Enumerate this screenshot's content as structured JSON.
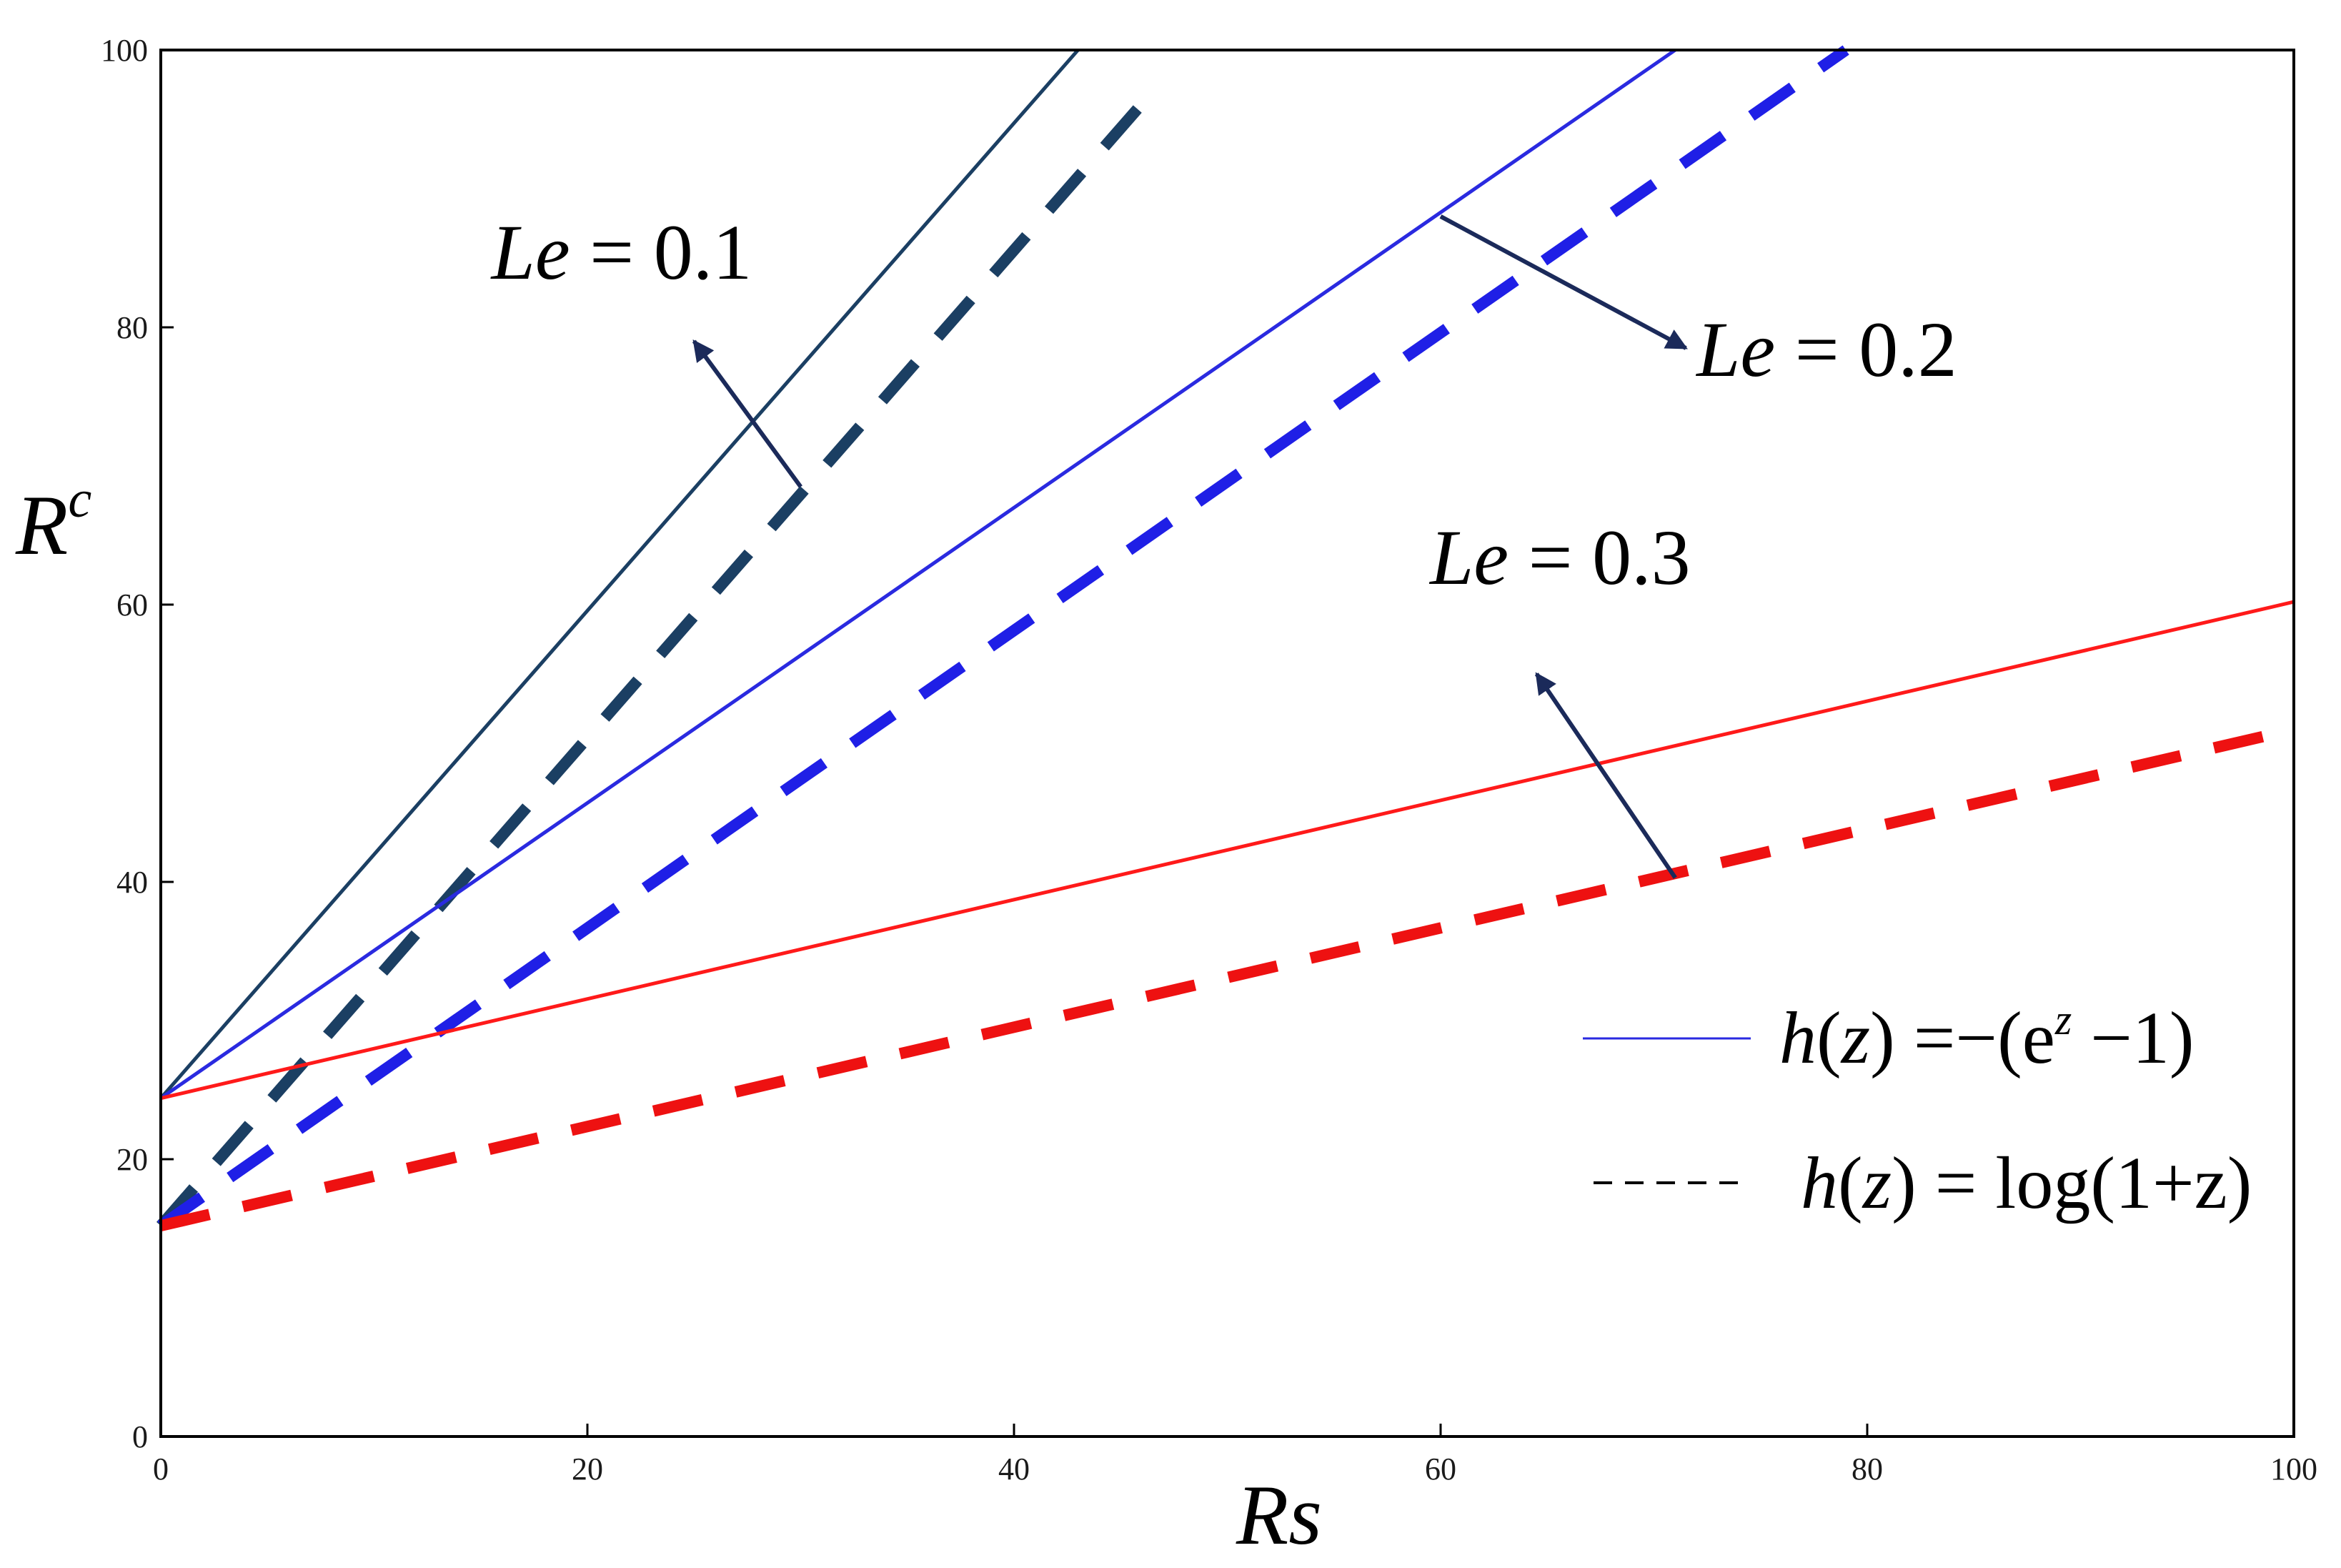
{
  "chart_data": {
    "type": "line",
    "xlabel": "Rs",
    "ylabel_base": "R",
    "ylabel_sup": "c",
    "xlim": [
      0,
      100
    ],
    "ylim": [
      0,
      100
    ],
    "xticks": [
      0,
      20,
      40,
      60,
      80,
      100
    ],
    "yticks": [
      0,
      20,
      40,
      60,
      80,
      100
    ],
    "grid": false,
    "legend_position": "right",
    "legend": [
      {
        "style": "solid",
        "label_prefix": "h",
        "label_mid": "z",
        "label_suffix": " =−(e",
        "label_sup": "z",
        "label_end": " −1)"
      },
      {
        "style": "dashed",
        "label_prefix": "h",
        "label_mid": "z",
        "label_suffix": " = log(1+z)"
      }
    ],
    "series": [
      {
        "le": "0.1",
        "style": "solid",
        "color": "#1b3f63",
        "points": [
          [
            0,
            24.4
          ],
          [
            43.0,
            100
          ]
        ]
      },
      {
        "le": "0.1",
        "style": "dashed",
        "color": "#1b3f63",
        "points": [
          [
            0,
            15.2
          ],
          [
            46.5,
            97
          ]
        ]
      },
      {
        "le": "0.2",
        "style": "solid",
        "color": "#2a2ae0",
        "points": [
          [
            0,
            24.4
          ],
          [
            71.0,
            100
          ]
        ]
      },
      {
        "le": "0.2",
        "style": "dashed",
        "color": "#1f1fe6",
        "points": [
          [
            0,
            15.2
          ],
          [
            79.0,
            100
          ]
        ]
      },
      {
        "le": "0.3",
        "style": "solid",
        "color": "#ff1a1a",
        "points": [
          [
            0,
            24.4
          ],
          [
            100,
            60.2
          ]
        ]
      },
      {
        "le": "0.3",
        "style": "dashed",
        "color": "#ee1111",
        "points": [
          [
            0,
            15.2
          ],
          [
            100,
            51.0
          ]
        ]
      }
    ],
    "annotations": [
      {
        "name": "le",
        "text_italic": "Le",
        "text_rest": " = 0.1",
        "color": "#1b2a5a",
        "label_at": [
          15.5,
          83.5
        ],
        "arrow_from": [
          30.0,
          68.5
        ],
        "arrow_to": [
          25.0,
          79.0
        ]
      },
      {
        "name": "le",
        "text_italic": "Le",
        "text_rest": " = 0.2",
        "color": "#1b2a5a",
        "label_at": [
          72.0,
          76.5
        ],
        "arrow_from": [
          60.0,
          88.0
        ],
        "arrow_to": [
          71.5,
          78.5
        ]
      },
      {
        "name": "le",
        "text_italic": "Le",
        "text_rest": " = 0.3",
        "color": "#1b2a5a",
        "label_at": [
          59.5,
          61.5
        ],
        "arrow_from": [
          71.0,
          40.3
        ],
        "arrow_to": [
          64.5,
          55.0
        ]
      }
    ]
  }
}
